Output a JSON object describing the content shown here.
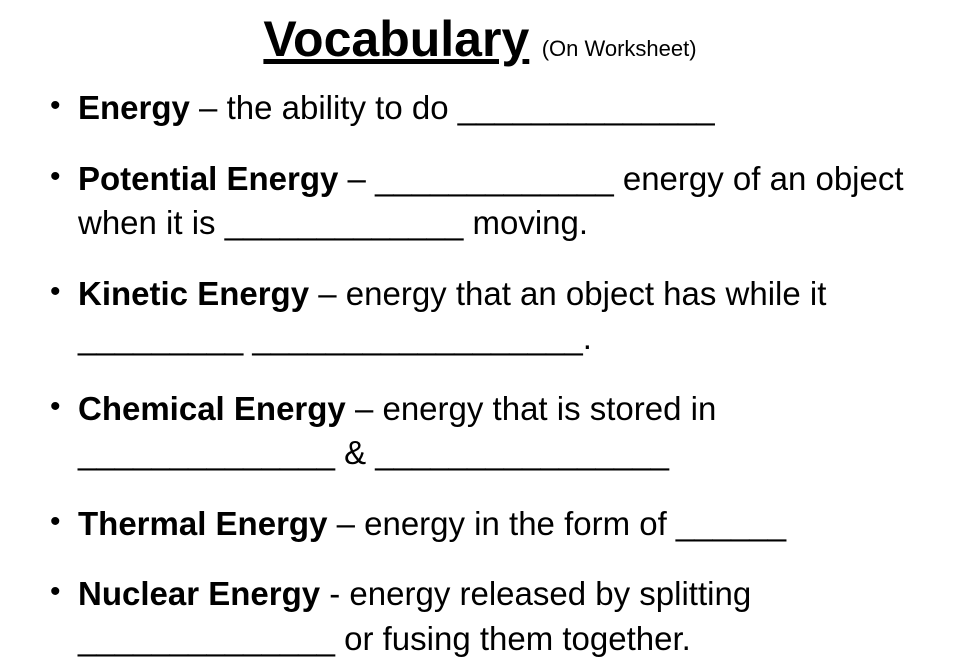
{
  "title": "Vocabulary",
  "subtitle": "(On Worksheet)",
  "items": [
    {
      "term": "Energy",
      "def": " – the ability to do ______________"
    },
    {
      "term": "Potential Energy",
      "def": " – _____________ energy of an object when it is _____________ moving."
    },
    {
      "term": "Kinetic Energy",
      "def": " – energy that an object has while it _________   __________________."
    },
    {
      "term": "Chemical Energy",
      "def": " – energy that is stored in ______________ & ________________"
    },
    {
      "term": "Thermal Energy",
      "def": " – energy in the form of ______"
    },
    {
      "term": "Nuclear Energy",
      "def": "  - energy released by splitting ______________ or fusing them together."
    }
  ],
  "colors": {
    "background": "#ffffff",
    "text": "#000000"
  },
  "typography": {
    "title_fontsize": 50,
    "body_fontsize": 33,
    "subtitle_fontsize": 22,
    "font_family": "Comic Sans MS"
  }
}
